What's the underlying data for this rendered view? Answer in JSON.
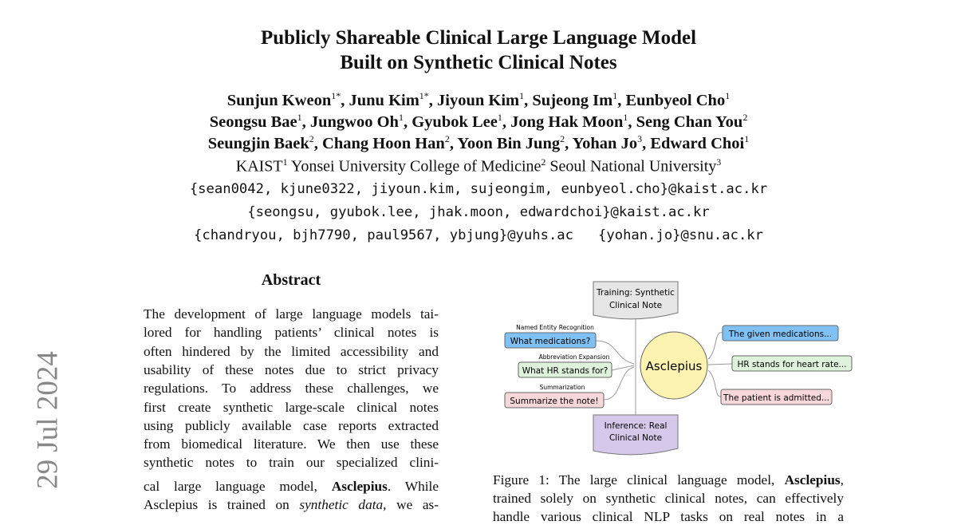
{
  "title_lines": [
    "Publicly Shareable Clinical Large Language Model",
    "Built on Synthetic Clinical Notes"
  ],
  "authors": [
    [
      [
        "Sunjun Kweon",
        "1*"
      ],
      [
        "Junu Kim",
        "1*"
      ],
      [
        "Jiyoun Kim",
        "1"
      ],
      [
        "Sujeong Im",
        "1"
      ],
      [
        "Eunbyeol Cho",
        "1"
      ]
    ],
    [
      [
        "Seongsu Bae",
        "1"
      ],
      [
        "Jungwoo Oh",
        "1"
      ],
      [
        "Gyubok Lee",
        "1"
      ],
      [
        "Jong Hak Moon",
        "1"
      ],
      [
        "Seng Chan You",
        "2"
      ]
    ],
    [
      [
        "Seungjin Baek",
        "2"
      ],
      [
        "Chang Hoon Han",
        "2"
      ],
      [
        "Yoon Bin Jung",
        "2"
      ],
      [
        "Yohan Jo",
        "3"
      ],
      [
        "Edward Choi",
        "1"
      ]
    ]
  ],
  "affiliations": [
    [
      "KAIST",
      "1"
    ],
    [
      "Yonsei University College of Medicine",
      "2"
    ],
    [
      "Seoul National University",
      "3"
    ]
  ],
  "emails": [
    "{sean0042, kjune0322, jiyoun.kim, sujeongim, eunbyeol.cho}@kaist.ac.kr",
    "{seongsu, gyubok.lee, jhak.moon, edwardchoi}@kaist.ac.kr",
    "{chandryou, bjh7790, paul9567, ybjung}@yuhs.ac   {yohan.jo}@snu.ac.kr"
  ],
  "arxiv_stamp": "29 Jul 2024",
  "abstract": {
    "heading": "Abstract",
    "lines": [
      "The development of large language models tai-",
      "lored for handling patients’ clinical notes is",
      "often hindered by the limited accessibility and",
      "usability of these notes due to strict privacy",
      "regulations. To address these challenges, we",
      "first create synthetic large-scale clinical notes",
      "using publicly available case reports extracted",
      "from biomedical literature. We then use these",
      "synthetic notes to train our specialized clini-"
    ],
    "line10": {
      "pre": "cal large language model, ",
      "bold": "Asclepius",
      "post": ".  While"
    },
    "line11": {
      "pre": "Asclepius is trained on ",
      "italic": "synthetic data",
      "post": ", we as-"
    }
  },
  "figure": {
    "training_box": [
      "Training: Synthetic",
      "Clinical Note"
    ],
    "inference_box": [
      "Inference: Real",
      "Clinical Note"
    ],
    "model": "Asclepius",
    "tasks": [
      {
        "label": "Named Entity Recognition",
        "question": "What medications?",
        "answer": "The given medications...",
        "color": "#7fc1f5"
      },
      {
        "label": "Abbreviation Expansion",
        "question": "What HR stands for?",
        "answer": "HR stands for heart rate...",
        "color": "#dff3dc"
      },
      {
        "label": "Summarization",
        "question": "Summarize the note!",
        "answer": "The patient is admitted...",
        "color": "#f8d7da"
      }
    ],
    "training_color": "#e6e6e6",
    "inference_color": "#d5c8ea",
    "model_color": "#fdf3b0"
  },
  "caption": {
    "line1": {
      "pre": "Figure 1: The large clinical language model, ",
      "bold": "Asclepius",
      "post": ","
    },
    "line2": "trained solely on synthetic clinical notes, can effectively",
    "line3": "handle various clinical NLP tasks on real notes in a"
  }
}
